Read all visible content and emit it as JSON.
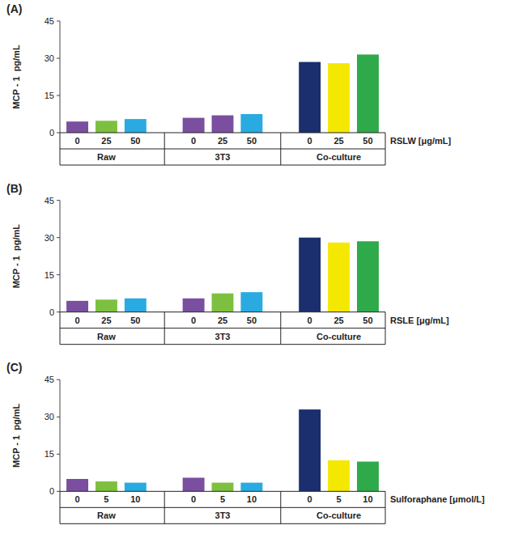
{
  "chart_data": [
    {
      "type": "bar",
      "title": "(A)",
      "xlabel": "RSLW [μg/mL]",
      "ylabel": "MCP - 1  pg/mL",
      "categories": [
        "0",
        "25",
        "50",
        "0",
        "25",
        "50",
        "0",
        "25",
        "50"
      ],
      "groups": [
        "Raw",
        "3T3",
        "Co-culture"
      ],
      "values": [
        4.5,
        4.8,
        5.5,
        6.0,
        7.0,
        7.5,
        28.5,
        28.0,
        31.5
      ],
      "colors": [
        "#7B4FA0",
        "#7DC040",
        "#29ABE2",
        "#7B4FA0",
        "#7B4FA0",
        "#29ABE2",
        "#1B2F6E",
        "#F5E800",
        "#2EAA4A"
      ],
      "ylim": [
        0,
        45
      ],
      "yticks": [
        0,
        15,
        30,
        45
      ],
      "grid": false
    },
    {
      "type": "bar",
      "title": "(B)",
      "xlabel": "RSLE [μg/mL]",
      "ylabel": "MCP - 1  pg/mL",
      "categories": [
        "0",
        "25",
        "50",
        "0",
        "25",
        "50",
        "0",
        "25",
        "50"
      ],
      "groups": [
        "Raw",
        "3T3",
        "Co-culture"
      ],
      "values": [
        4.5,
        5.0,
        5.5,
        5.5,
        7.5,
        8.0,
        30.0,
        28.0,
        28.5
      ],
      "colors": [
        "#7B4FA0",
        "#7DC040",
        "#29ABE2",
        "#7B4FA0",
        "#7DC040",
        "#29ABE2",
        "#1B2F6E",
        "#F5E800",
        "#2EAA4A"
      ],
      "ylim": [
        0,
        45
      ],
      "yticks": [
        0,
        15,
        30,
        45
      ],
      "grid": false
    },
    {
      "type": "bar",
      "title": "(C)",
      "xlabel": "Sulforaphane [μmol/L]",
      "ylabel": "MCP - 1  pg/mL",
      "categories": [
        "0",
        "5",
        "10",
        "0",
        "5",
        "10",
        "0",
        "5",
        "10"
      ],
      "groups": [
        "Raw",
        "3T3",
        "Co-culture"
      ],
      "values": [
        5.0,
        4.0,
        3.5,
        5.5,
        3.5,
        3.5,
        33.0,
        12.5,
        12.0
      ],
      "colors": [
        "#7B4FA0",
        "#7DC040",
        "#29ABE2",
        "#7B4FA0",
        "#7DC040",
        "#29ABE2",
        "#1B2F6E",
        "#F5E800",
        "#2EAA4A"
      ],
      "ylim": [
        0,
        45
      ],
      "yticks": [
        0,
        15,
        30,
        45
      ],
      "grid": false
    }
  ]
}
